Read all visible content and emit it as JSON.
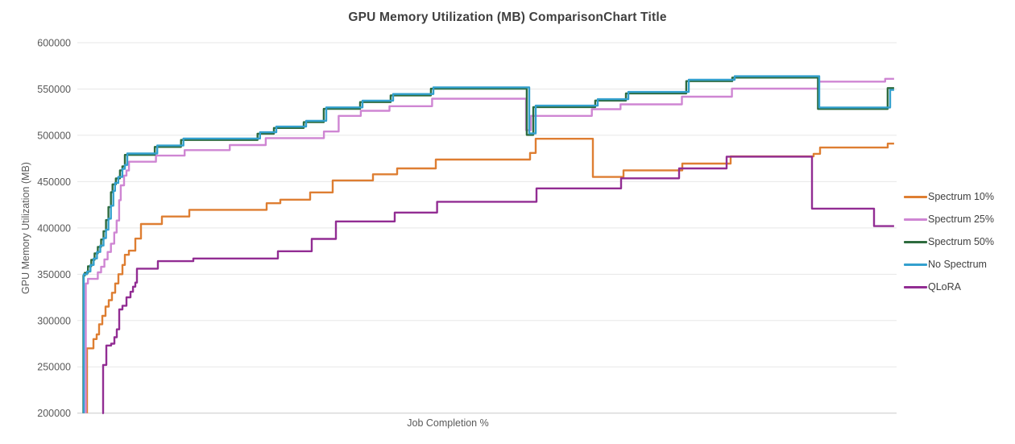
{
  "title": "GPU Memory Utilization (MB) ComparisonChart Title",
  "chart_data": {
    "type": "line",
    "title": "GPU Memory Utilization (MB) ComparisonChart Title",
    "xlabel": "Job Completion %",
    "ylabel": "GPU Memory Utilization (MB)",
    "ylim": [
      200000,
      600000
    ],
    "y_ticks": [
      600000,
      550000,
      500000,
      450000,
      400000,
      350000,
      300000,
      250000,
      200000
    ],
    "x_range_pct": [
      0,
      100
    ],
    "x_tick_labels": [],
    "grid": "horizontal",
    "legend_position": "right",
    "line_style": "step-after",
    "x_end_pct": 99.7,
    "series": [
      {
        "name": "Spectrum 10%",
        "color": "#de7e32",
        "points": [
          [
            1.18,
            200000
          ],
          [
            1.18,
            270000
          ],
          [
            1.97,
            280000
          ],
          [
            2.36,
            285000
          ],
          [
            2.65,
            296000
          ],
          [
            3.05,
            305000
          ],
          [
            3.44,
            315000
          ],
          [
            3.83,
            322000
          ],
          [
            4.23,
            330000
          ],
          [
            4.62,
            340000
          ],
          [
            5.01,
            350000
          ],
          [
            5.51,
            360000
          ],
          [
            5.8,
            371000
          ],
          [
            6.29,
            375400
          ],
          [
            7.08,
            388500
          ],
          [
            7.77,
            404200
          ],
          [
            10.32,
            412300
          ],
          [
            13.67,
            419500
          ],
          [
            23.11,
            426700
          ],
          [
            24.78,
            430500
          ],
          [
            28.42,
            438300
          ],
          [
            31.17,
            451300
          ],
          [
            36.09,
            457900
          ],
          [
            39.04,
            464300
          ],
          [
            43.76,
            473800
          ],
          [
            55.26,
            481000
          ],
          [
            55.95,
            496300
          ],
          [
            62.93,
            455000
          ],
          [
            66.67,
            462200
          ],
          [
            73.84,
            469500
          ],
          [
            79.74,
            477200
          ],
          [
            89.87,
            480000
          ],
          [
            90.66,
            486800
          ],
          [
            98.92,
            491100
          ]
        ]
      },
      {
        "name": "Spectrum 25%",
        "color": "#cf86d3",
        "points": [
          [
            1.03,
            200000
          ],
          [
            1.03,
            340000
          ],
          [
            1.3,
            345000
          ],
          [
            2.5,
            352000
          ],
          [
            2.9,
            358000
          ],
          [
            3.3,
            366000
          ],
          [
            3.7,
            374000
          ],
          [
            4.1,
            383000
          ],
          [
            4.5,
            395000
          ],
          [
            4.8,
            408000
          ],
          [
            5.1,
            430000
          ],
          [
            5.3,
            446000
          ],
          [
            5.7,
            456500
          ],
          [
            6.0,
            462000
          ],
          [
            6.3,
            471500
          ],
          [
            9.6,
            478100
          ],
          [
            13.1,
            484000
          ],
          [
            18.6,
            489500
          ],
          [
            23.0,
            497000
          ],
          [
            30.1,
            504100
          ],
          [
            31.9,
            521000
          ],
          [
            34.6,
            526500
          ],
          [
            38.1,
            531400
          ],
          [
            43.3,
            539500
          ],
          [
            54.77,
            505500
          ],
          [
            55.36,
            521000
          ],
          [
            62.8,
            528200
          ],
          [
            66.3,
            533400
          ],
          [
            73.8,
            541700
          ],
          [
            79.9,
            550400
          ],
          [
            90.5,
            558000
          ],
          [
            98.6,
            561000
          ]
        ]
      },
      {
        "name": "Spectrum 50%",
        "color": "#2e6b3e",
        "points": [
          [
            0.74,
            200000
          ],
          [
            0.74,
            348500
          ],
          [
            0.9,
            351500
          ],
          [
            1.3,
            358500
          ],
          [
            1.7,
            365500
          ],
          [
            2.1,
            372500
          ],
          [
            2.5,
            379500
          ],
          [
            2.9,
            387500
          ],
          [
            3.2,
            396500
          ],
          [
            3.5,
            408500
          ],
          [
            3.8,
            422500
          ],
          [
            4.1,
            438500
          ],
          [
            4.3,
            447000
          ],
          [
            4.7,
            453500
          ],
          [
            5.2,
            462200
          ],
          [
            5.5,
            466500
          ],
          [
            5.8,
            478900
          ],
          [
            9.45,
            487500
          ],
          [
            12.65,
            495000
          ],
          [
            22.0,
            501800
          ],
          [
            23.99,
            507900
          ],
          [
            27.63,
            514200
          ],
          [
            30.08,
            528600
          ],
          [
            34.51,
            535900
          ],
          [
            38.24,
            543100
          ],
          [
            43.16,
            550300
          ],
          [
            54.86,
            500500
          ],
          [
            55.65,
            530500
          ],
          [
            63.22,
            537500
          ],
          [
            66.96,
            545300
          ],
          [
            74.33,
            558500
          ],
          [
            79.94,
            562300
          ],
          [
            90.4,
            528500
          ],
          [
            98.91,
            551000
          ]
        ]
      },
      {
        "name": "No Spectrum",
        "color": "#33a0ce",
        "points": [
          [
            0.79,
            200000
          ],
          [
            0.79,
            350000
          ],
          [
            1.2,
            353000
          ],
          [
            1.6,
            360000
          ],
          [
            2.0,
            367000
          ],
          [
            2.4,
            374000
          ],
          [
            2.8,
            381000
          ],
          [
            3.2,
            389000
          ],
          [
            3.5,
            398000
          ],
          [
            3.8,
            410000
          ],
          [
            4.1,
            424000
          ],
          [
            4.4,
            440000
          ],
          [
            4.6,
            448500
          ],
          [
            5.0,
            455000
          ],
          [
            5.5,
            463700
          ],
          [
            5.8,
            468000
          ],
          [
            6.1,
            480400
          ],
          [
            9.75,
            489000
          ],
          [
            12.95,
            496500
          ],
          [
            22.3,
            503300
          ],
          [
            24.29,
            509400
          ],
          [
            27.93,
            515700
          ],
          [
            30.38,
            530100
          ],
          [
            34.81,
            537400
          ],
          [
            38.54,
            544600
          ],
          [
            43.46,
            551800
          ],
          [
            55.16,
            502000
          ],
          [
            55.95,
            532000
          ],
          [
            63.52,
            539000
          ],
          [
            67.26,
            546800
          ],
          [
            74.63,
            560000
          ],
          [
            80.24,
            563800
          ],
          [
            90.56,
            530000
          ],
          [
            99.21,
            549000
          ]
        ]
      },
      {
        "name": "QLoRA",
        "color": "#922d93",
        "points": [
          [
            3.05,
            200000
          ],
          [
            3.15,
            252000
          ],
          [
            3.54,
            273000
          ],
          [
            4.13,
            275000
          ],
          [
            4.52,
            282000
          ],
          [
            4.82,
            290500
          ],
          [
            5.11,
            312000
          ],
          [
            5.51,
            316000
          ],
          [
            6.0,
            325000
          ],
          [
            6.49,
            331000
          ],
          [
            6.79,
            336500
          ],
          [
            7.08,
            341000
          ],
          [
            7.28,
            356000
          ],
          [
            9.83,
            364100
          ],
          [
            14.16,
            367000
          ],
          [
            24.48,
            374800
          ],
          [
            28.61,
            388100
          ],
          [
            31.56,
            407000
          ],
          [
            38.74,
            416600
          ],
          [
            43.91,
            428200
          ],
          [
            56.05,
            442700
          ],
          [
            66.37,
            453600
          ],
          [
            73.45,
            464300
          ],
          [
            79.25,
            477000
          ],
          [
            89.68,
            420800
          ],
          [
            97.25,
            402000
          ]
        ]
      }
    ]
  }
}
